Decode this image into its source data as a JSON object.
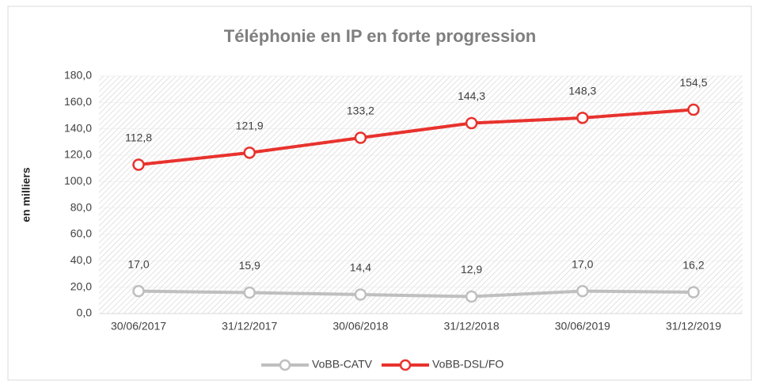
{
  "chart_data": {
    "type": "line",
    "title": "Téléphonie en IP en forte progression",
    "y_label": "en milliers",
    "categories": [
      "30/06/2017",
      "31/12/2017",
      "30/06/2018",
      "31/12/2018",
      "30/06/2019",
      "31/12/2019"
    ],
    "series": [
      {
        "name": "VoBB-CATV",
        "color": "#bfbfbf",
        "values": [
          17.0,
          15.9,
          14.4,
          12.9,
          17.0,
          16.2
        ],
        "value_labels": [
          "17,0",
          "15,9",
          "14,4",
          "12,9",
          "17,0",
          "16,2"
        ]
      },
      {
        "name": "VoBB-DSL/FO",
        "color": "#e8322d",
        "values": [
          112.8,
          121.9,
          133.2,
          144.3,
          148.3,
          154.5
        ],
        "value_labels": [
          "112,8",
          "121,9",
          "133,2",
          "144,3",
          "148,3",
          "154,5"
        ]
      }
    ],
    "ylim": [
      0,
      180
    ],
    "yticks": [
      {
        "value": 0,
        "label": "0,0"
      },
      {
        "value": 20,
        "label": "20,0"
      },
      {
        "value": 40,
        "label": "40,0"
      },
      {
        "value": 60,
        "label": "60,0"
      },
      {
        "value": 80,
        "label": "80,0"
      },
      {
        "value": 100,
        "label": "100,0"
      },
      {
        "value": 120,
        "label": "120,0"
      },
      {
        "value": 140,
        "label": "140,0"
      },
      {
        "value": 160,
        "label": "160,0"
      },
      {
        "value": 180,
        "label": "180,0"
      }
    ],
    "grid": true,
    "legend": "bottom"
  }
}
